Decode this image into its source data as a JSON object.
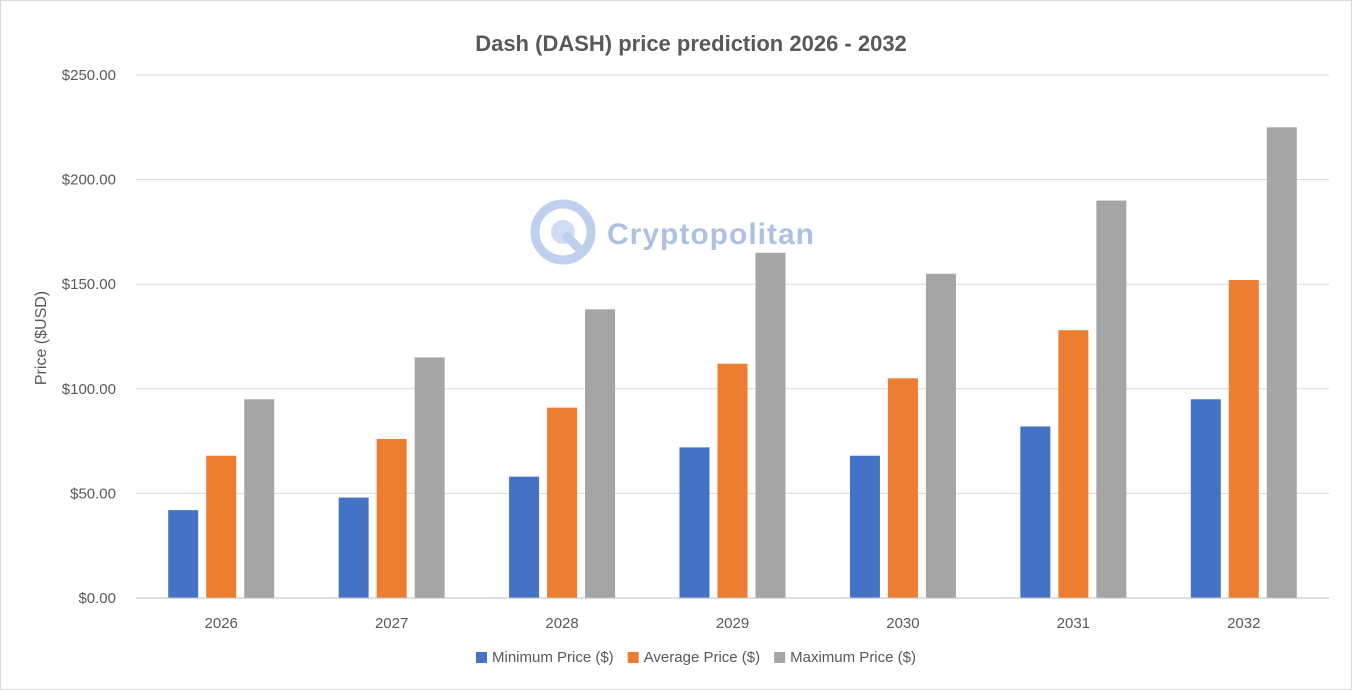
{
  "chart_data": {
    "type": "bar",
    "title": "Dash (DASH) price prediction 2026 - 2032",
    "ylabel": "Price ($USD)",
    "xlabel": "",
    "categories": [
      "2026",
      "2027",
      "2028",
      "2029",
      "2030",
      "2031",
      "2032"
    ],
    "ylim": [
      0,
      250
    ],
    "ytick_step": 50,
    "ytick_labels": [
      "$0.00",
      "$50.00",
      "$100.00",
      "$150.00",
      "$200.00",
      "$250.00"
    ],
    "grid": true,
    "legend_position": "bottom",
    "series": [
      {
        "name": "Minimum Price ($)",
        "color": "#4472c4",
        "values": [
          42,
          48,
          58,
          72,
          68,
          82,
          95
        ]
      },
      {
        "name": "Average Price ($)",
        "color": "#ed7d31",
        "values": [
          68,
          76,
          91,
          112,
          105,
          128,
          152
        ]
      },
      {
        "name": "Maximum Price ($)",
        "color": "#a5a5a5",
        "values": [
          95,
          115,
          138,
          165,
          155,
          190,
          225
        ]
      }
    ]
  },
  "watermark": {
    "text": "Cryptopolitan",
    "icon": "cryptopolitan-logo-icon"
  }
}
